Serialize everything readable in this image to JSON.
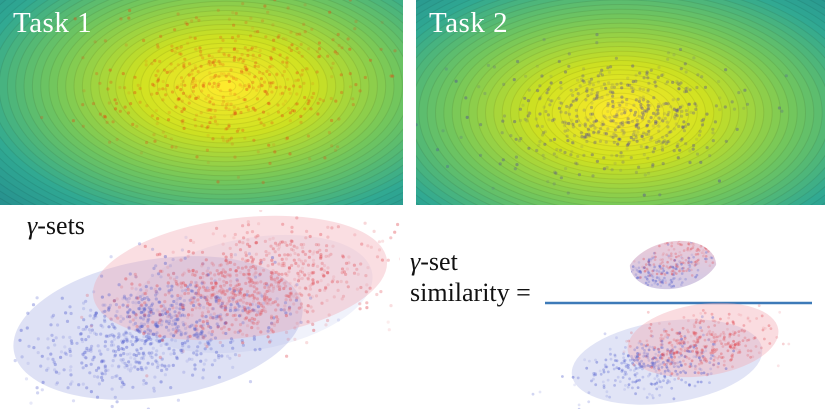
{
  "panels": [
    {
      "label": "Task 1",
      "point_color": "#e04a12"
    },
    {
      "label": "Task 2",
      "point_color": "#4a3f9e"
    }
  ],
  "colormap": [
    "#fdea2c",
    "#cfe121",
    "#76c85a",
    "#2fa893",
    "#23858c"
  ],
  "gamma_sets": {
    "label": "γ-sets",
    "ellipse_blue": "#9aa5e2",
    "ellipse_red": "#f2a8b2",
    "points_blue": "#4956cb",
    "points_red": "#e04a52"
  },
  "similarity": {
    "label_line1": "γ-set",
    "label_line2": "similarity =",
    "bar_color": "#3d7ab8"
  }
}
